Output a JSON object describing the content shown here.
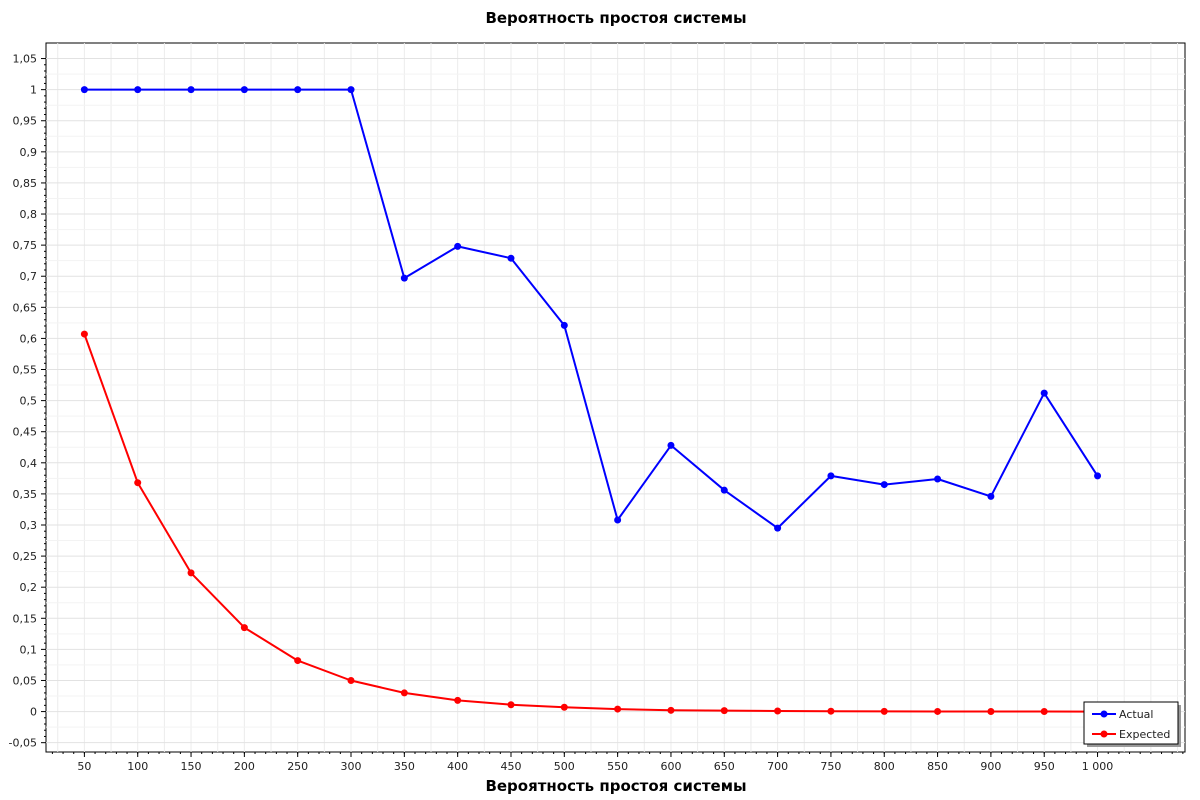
{
  "chart_data": {
    "type": "line",
    "title": "Вероятность простоя системы",
    "xlabel": "Вероятность простоя системы",
    "ylabel": "",
    "x": [
      50,
      100,
      150,
      200,
      250,
      300,
      350,
      400,
      450,
      500,
      550,
      600,
      650,
      700,
      750,
      800,
      850,
      900,
      950,
      1000
    ],
    "x_tick_labels": [
      "50",
      "100",
      "150",
      "200",
      "250",
      "300",
      "350",
      "400",
      "450",
      "500",
      "550",
      "600",
      "650",
      "700",
      "750",
      "800",
      "850",
      "900",
      "950",
      "1 000"
    ],
    "xlim": [
      14,
      1082
    ],
    "ylim": [
      -0.065,
      1.075
    ],
    "y_ticks": [
      -0.05,
      0,
      0.05,
      0.1,
      0.15,
      0.2,
      0.25,
      0.3,
      0.35,
      0.4,
      0.45,
      0.5,
      0.55,
      0.6,
      0.65,
      0.7,
      0.75,
      0.8,
      0.85,
      0.9,
      0.95,
      1,
      1.05
    ],
    "y_tick_labels": [
      "-0,05",
      "0",
      "0,05",
      "0,1",
      "0,15",
      "0,2",
      "0,25",
      "0,3",
      "0,35",
      "0,4",
      "0,45",
      "0,5",
      "0,55",
      "0,6",
      "0,65",
      "0,7",
      "0,75",
      "0,8",
      "0,85",
      "0,9",
      "0,95",
      "1",
      "1,05"
    ],
    "grid": true,
    "legend_position": "bottom-right",
    "series": [
      {
        "name": "Actual",
        "color": "#0000ff",
        "values": [
          1,
          1,
          1,
          1,
          1,
          1,
          0.697,
          0.748,
          0.729,
          0.621,
          0.308,
          0.428,
          0.356,
          0.295,
          0.379,
          0.365,
          0.374,
          0.346,
          0.512,
          0.379
        ]
      },
      {
        "name": "Expected",
        "color": "#ff0000",
        "values": [
          0.607,
          0.368,
          0.223,
          0.135,
          0.082,
          0.05,
          0.03,
          0.018,
          0.011,
          0.007,
          0.004,
          0.002,
          0.0015,
          0.0009,
          0.0006,
          0.0003,
          0.0002,
          0.0001,
          0.0001,
          0.0
        ]
      }
    ]
  }
}
